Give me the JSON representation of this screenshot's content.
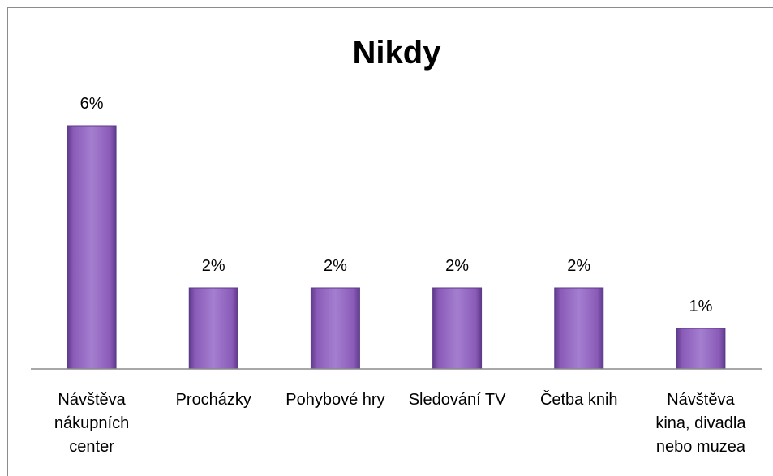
{
  "chart_data": {
    "type": "bar",
    "title": "Nikdy",
    "categories": [
      [
        "Návštěva",
        "nákupních",
        "center"
      ],
      [
        "Procházky"
      ],
      [
        "Pohybové hry"
      ],
      [
        "Sledování TV"
      ],
      [
        "Četba knih"
      ],
      [
        "Návštěva",
        "kina, divadla",
        "nebo muzea"
      ]
    ],
    "values": [
      6,
      2,
      2,
      2,
      2,
      1
    ],
    "data_labels": [
      "6%",
      "2%",
      "2%",
      "2%",
      "2%",
      "1%"
    ],
    "unit": "%",
    "ylim": [
      0,
      6.5
    ],
    "grid": false,
    "legend": "none",
    "colors": {
      "bar_fill": "#8a5bb8",
      "bar_light": "#a47ed0",
      "bar_dark": "#5e3a8a",
      "axis": "#8c8c8c"
    }
  }
}
